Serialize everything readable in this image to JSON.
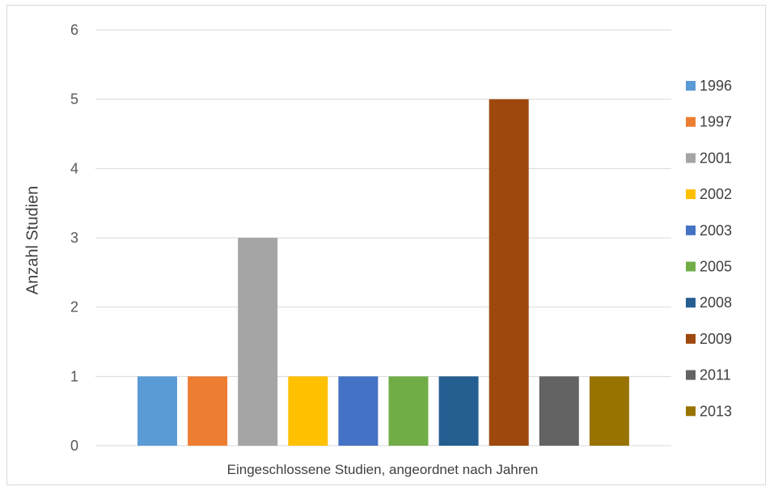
{
  "chart_data": {
    "type": "bar",
    "xlabel": "Eingeschlossene Studien, angeordnet nach Jahren",
    "ylabel": "Anzahl Studien",
    "ylim": [
      0,
      6
    ],
    "yticks": [
      "0",
      "1",
      "2",
      "3",
      "4",
      "5",
      "6"
    ],
    "grid": true,
    "legend_position": "right",
    "series": [
      {
        "name": "1996",
        "value": 1,
        "color": "#5b9bd5"
      },
      {
        "name": "1997",
        "value": 1,
        "color": "#ed7d31"
      },
      {
        "name": "2001",
        "value": 3,
        "color": "#a5a5a5"
      },
      {
        "name": "2002",
        "value": 1,
        "color": "#ffc000"
      },
      {
        "name": "2003",
        "value": 1,
        "color": "#4472c4"
      },
      {
        "name": "2005",
        "value": 1,
        "color": "#70ad47"
      },
      {
        "name": "2008",
        "value": 1,
        "color": "#255e91"
      },
      {
        "name": "2009",
        "value": 5,
        "color": "#9e480e"
      },
      {
        "name": "2011",
        "value": 1,
        "color": "#636363"
      },
      {
        "name": "2013",
        "value": 1,
        "color": "#997300"
      }
    ]
  }
}
